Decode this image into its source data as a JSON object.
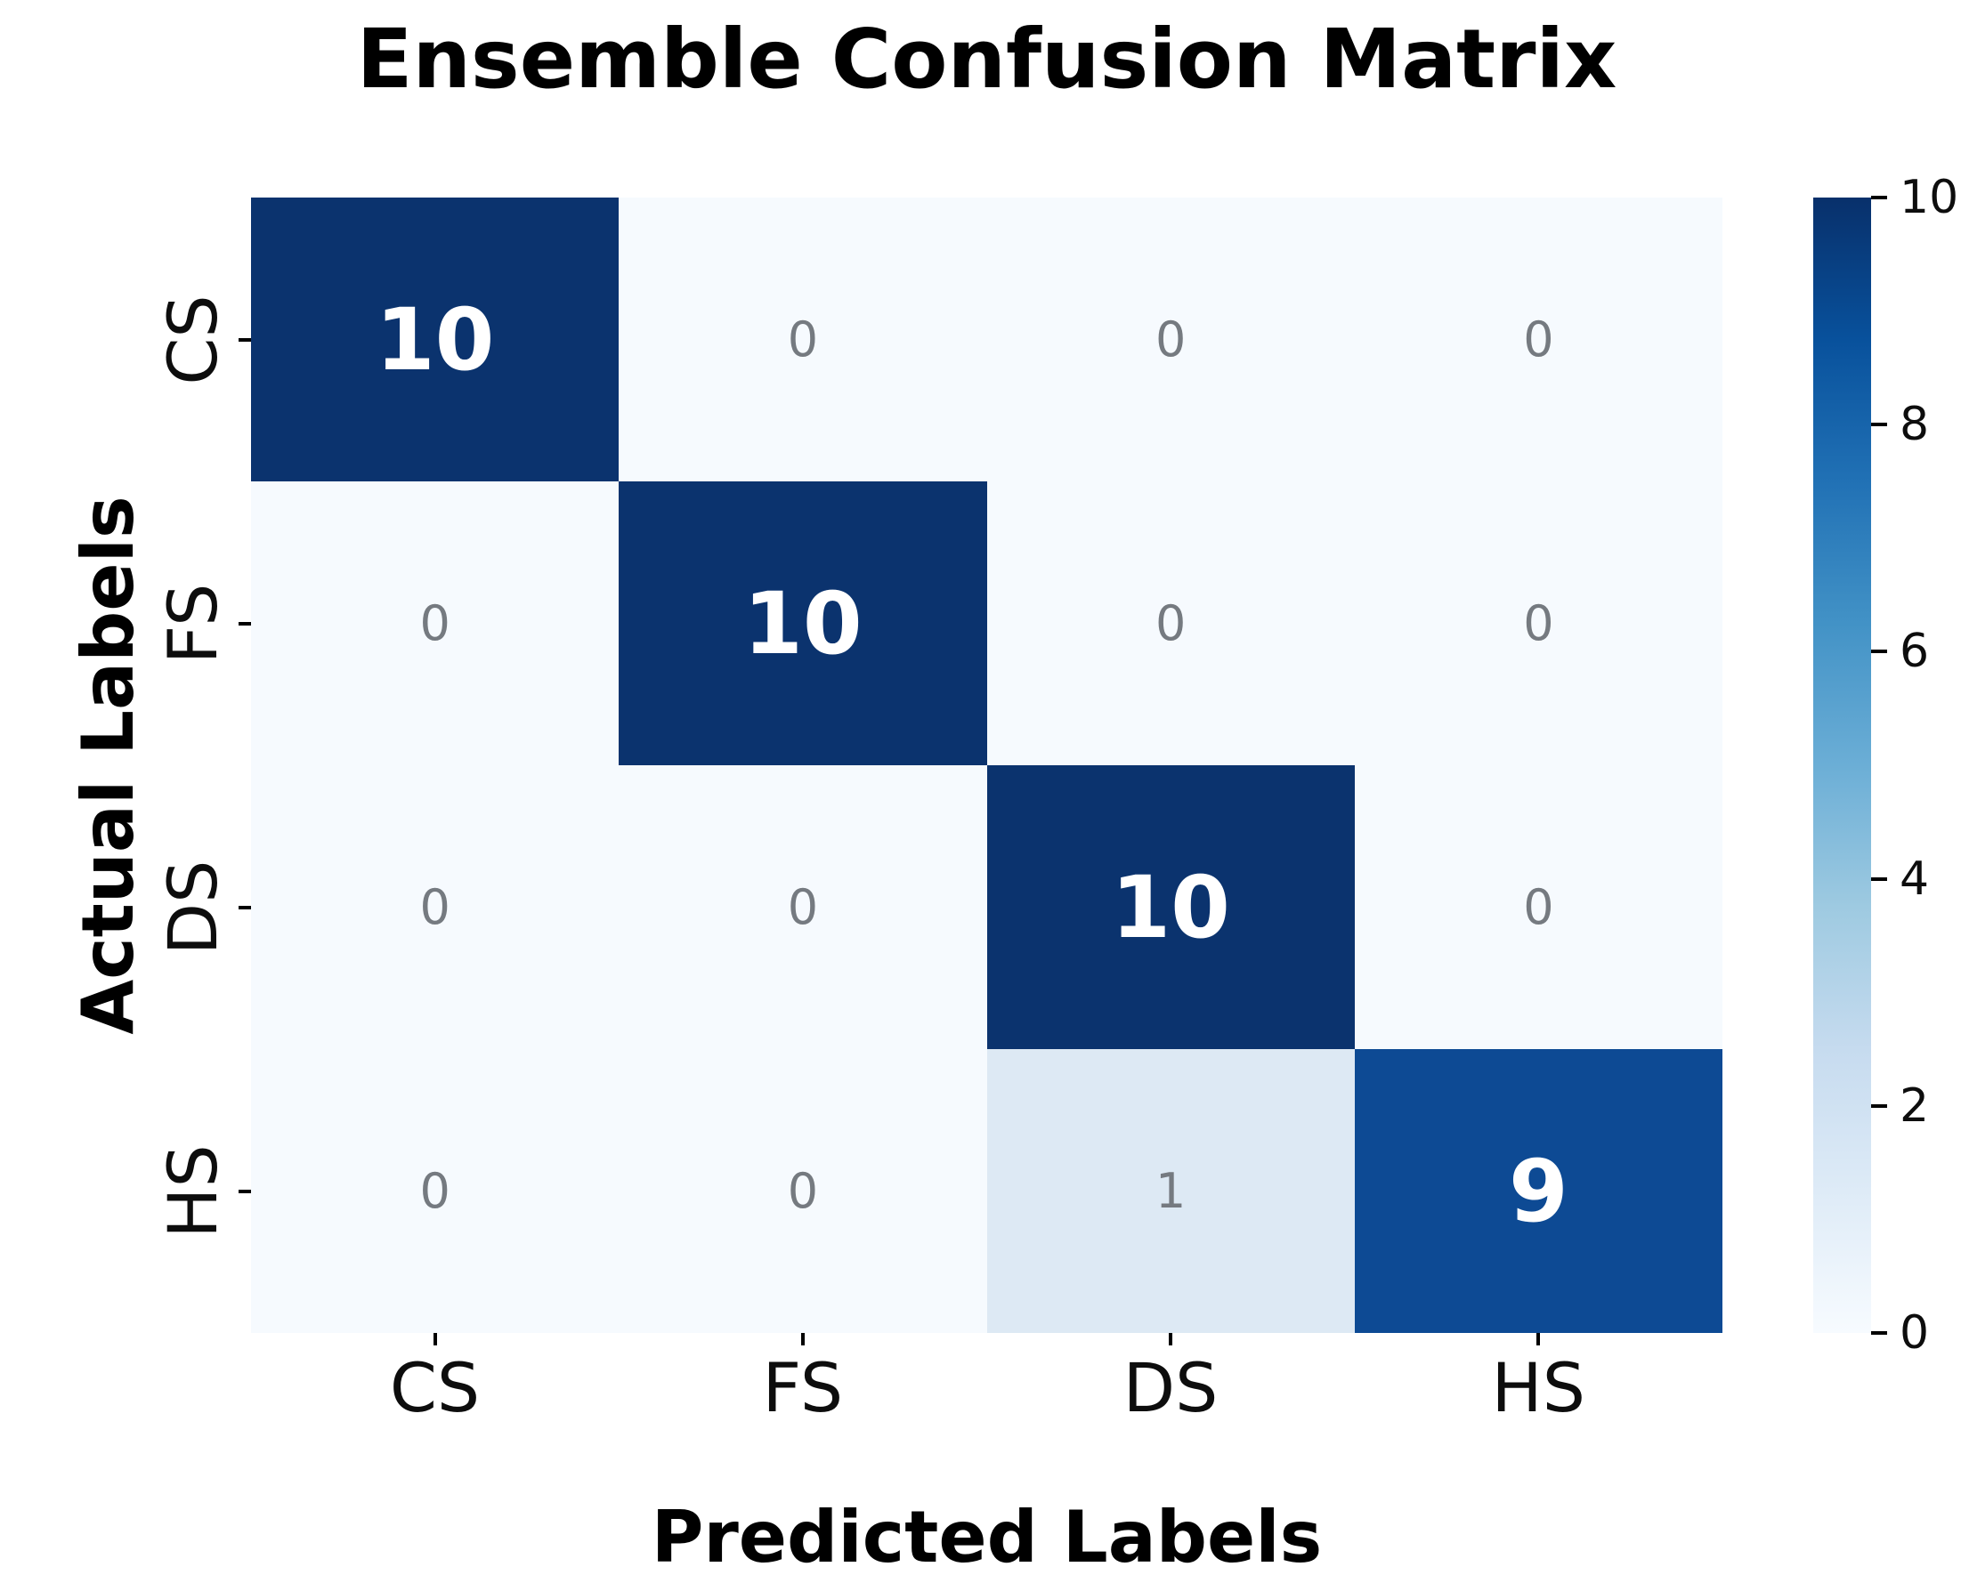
{
  "chart_data": {
    "type": "heatmap",
    "title": "Ensemble Confusion Matrix",
    "xlabel": "Predicted Labels",
    "ylabel": "Actual Labels",
    "x_tick_labels": [
      "CS",
      "FS",
      "DS",
      "HS"
    ],
    "y_tick_labels": [
      "CS",
      "FS",
      "DS",
      "HS"
    ],
    "matrix": [
      [
        10,
        0,
        0,
        0
      ],
      [
        0,
        10,
        0,
        0
      ],
      [
        0,
        0,
        10,
        0
      ],
      [
        0,
        0,
        1,
        9
      ]
    ],
    "value_range": [
      0,
      10
    ],
    "colorbar_ticks": [
      0,
      2,
      4,
      6,
      8,
      10
    ],
    "colormap": "Blues",
    "grid": false,
    "colorbar_position": "right",
    "value_colors": {
      "0": "#f6fafe",
      "1": "#dde9f4",
      "9": "#0d4a94",
      "10": "#0b336e"
    },
    "annotation_colors": {
      "high": "#ffffff",
      "low": "#757a80"
    },
    "accent_dark_blue": "#08306b",
    "background": "#ffffff"
  }
}
